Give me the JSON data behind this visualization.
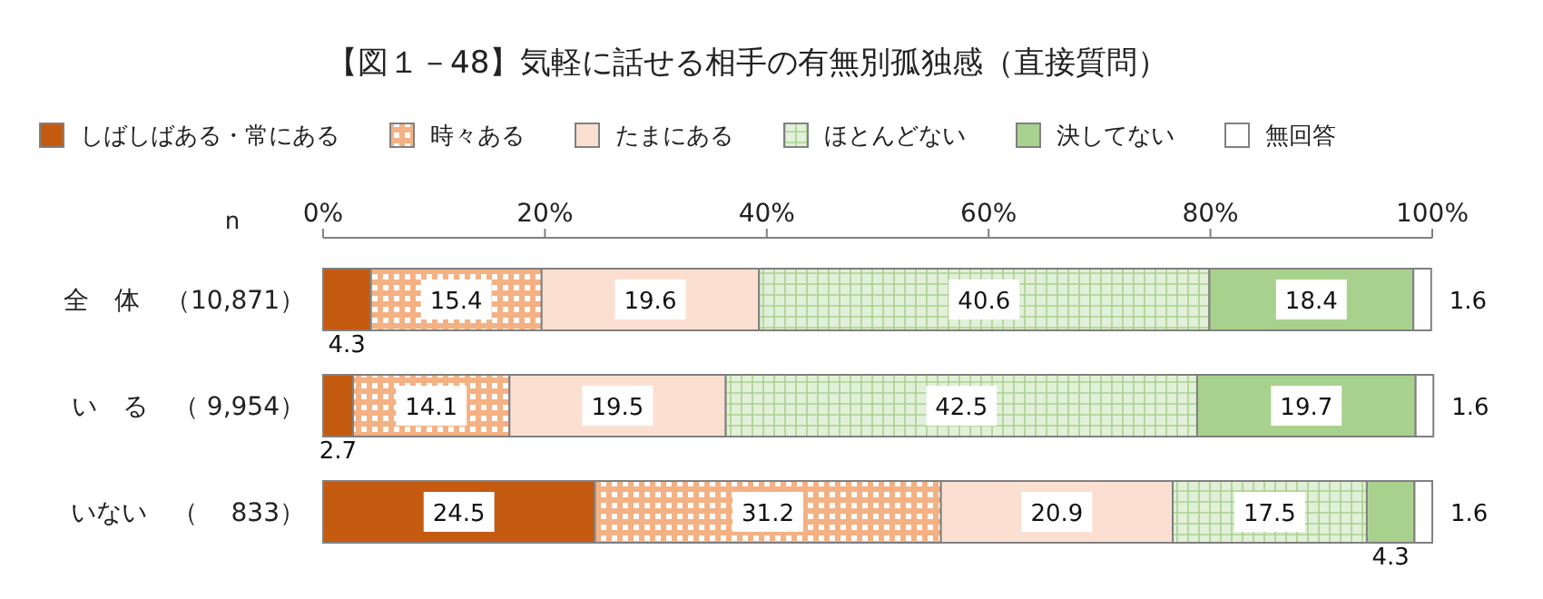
{
  "chart_data": {
    "type": "bar",
    "orientation": "horizontal",
    "stacked": true,
    "title": "【図１－48】気軽に話せる相手の有無別孤独感（直接質問）",
    "categories": [
      "全　体　（10,871）",
      "い　る　（ 9,954）",
      "いない　（　 833）"
    ],
    "series": [
      {
        "name": "しばしばある・常にある",
        "color": "#c55a11",
        "values": [
          4.3,
          2.7,
          24.5
        ]
      },
      {
        "name": "時々ある",
        "color": "#f4b183",
        "values": [
          15.4,
          14.1,
          31.2
        ]
      },
      {
        "name": "たまにある",
        "color": "#fbe0d2",
        "values": [
          19.6,
          19.5,
          20.9
        ]
      },
      {
        "name": "ほとんどない",
        "color": "#e2f0d9",
        "values": [
          40.6,
          42.5,
          17.5
        ]
      },
      {
        "name": "決してない",
        "color": "#a9d18e",
        "values": [
          18.4,
          19.7,
          4.3
        ]
      },
      {
        "name": "無回答",
        "color": "#ffffff",
        "values": [
          1.6,
          1.6,
          1.6
        ]
      }
    ],
    "xlim": [
      0,
      100
    ],
    "xticks": [
      {
        "value": 0,
        "label": "0%"
      },
      {
        "value": 20,
        "label": "20%"
      },
      {
        "value": 40,
        "label": "40%"
      },
      {
        "value": 60,
        "label": "60%"
      },
      {
        "value": 80,
        "label": "80%"
      },
      {
        "value": 100,
        "label": "100%"
      }
    ],
    "annotations": [
      "n"
    ],
    "data_labels": true,
    "legend": "top",
    "grid": false
  }
}
